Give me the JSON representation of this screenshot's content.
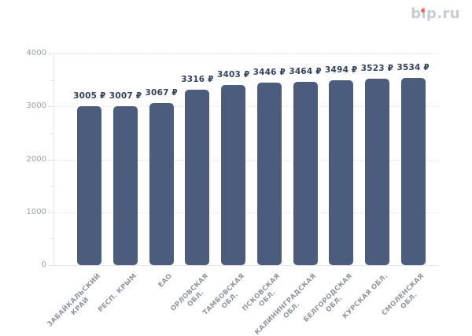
{
  "logo": {
    "text": "bip.ru",
    "color": "#c6cbd8",
    "accent_color": "#f2684a"
  },
  "chart_data": {
    "type": "bar",
    "categories": [
      [
        "ЗАБАЙКАЛЬСКИЙ",
        "КРАЙ"
      ],
      [
        "РЕСП. КРЫМ"
      ],
      [
        "ЕАО"
      ],
      [
        "ОРЛОВСКАЯ",
        "ОБЛ."
      ],
      [
        "ТАМБОВСКАЯ",
        "ОБЛ."
      ],
      [
        "ПСКОВСКАЯ",
        "ОБЛ."
      ],
      [
        "КАЛИНИНГРАДСКАЯ",
        "ОБЛ."
      ],
      [
        "БЕЛГОРОДСКАЯ",
        "ОБЛ."
      ],
      [
        "КУРСКАЯ ОБЛ."
      ],
      [
        "СМОЛЕНСКАЯ",
        "ОБЛ."
      ]
    ],
    "values": [
      3005,
      3007,
      3067,
      3316,
      3403,
      3446,
      3464,
      3494,
      3523,
      3534
    ],
    "value_labels": [
      "3005 ₽",
      "3007 ₽",
      "3067 ₽",
      "3316 ₽",
      "3403 ₽",
      "3446 ₽",
      "3464 ₽",
      "3494 ₽",
      "3523 ₽",
      "3534 ₽"
    ],
    "currency_symbol": "₽",
    "ylim": [
      0,
      4000
    ],
    "y_ticks": [
      0,
      1000,
      2000,
      3000,
      4000
    ],
    "y_minor_ticks": [
      500,
      1500,
      2500,
      3500
    ],
    "grid": "dotted horizontal lines at major y ticks",
    "legend": "none",
    "xlabel": "",
    "ylabel": "",
    "bar_color": "#4b5c7d",
    "value_label_color": "#32425f",
    "y_axis_label_color": "#99a1ad",
    "x_axis_label_color": "#8e95a2"
  }
}
